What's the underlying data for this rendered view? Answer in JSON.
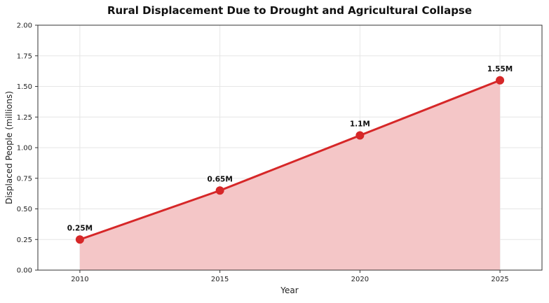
{
  "chart_data": {
    "type": "area",
    "title": "Rural Displacement Due to Drought and Agricultural Collapse",
    "xlabel": "Year",
    "ylabel": "Displaced People (millions)",
    "x": [
      2010,
      2015,
      2020,
      2025
    ],
    "series": [
      {
        "values": [
          0.25,
          0.65,
          1.1,
          1.55
        ],
        "labels": [
          "0.25M",
          "0.65M",
          "1.1M",
          "1.55M"
        ]
      }
    ],
    "x_ticks": [
      "2010",
      "2015",
      "2020",
      "2025"
    ],
    "y_ticks": [
      "0.00",
      "0.25",
      "0.50",
      "0.75",
      "1.00",
      "1.25",
      "1.50",
      "1.75",
      "2.00"
    ],
    "ylim": [
      0,
      2
    ],
    "grid": true,
    "colors": {
      "line": "#d62728",
      "fill": "#f4c6c7",
      "marker": "#d62728"
    }
  }
}
